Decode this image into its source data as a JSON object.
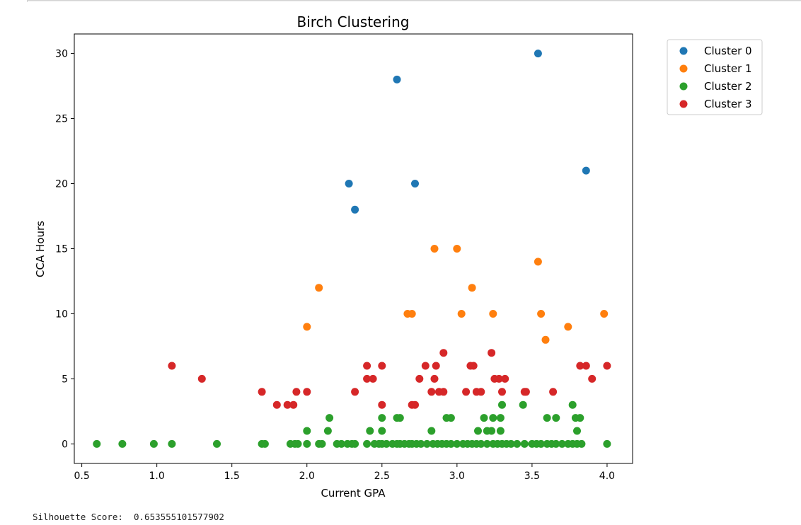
{
  "output": {
    "silhouette_label": "Silhouette Score:",
    "silhouette_value": "0.653555101577902"
  },
  "chart_data": {
    "type": "scatter",
    "title": "Birch Clustering",
    "xlabel": "Current GPA",
    "ylabel": "CCA Hours",
    "xlim": [
      0.45,
      4.17
    ],
    "ylim": [
      -1.5,
      31.5
    ],
    "xticks": [
      "0.5",
      "1.0",
      "1.5",
      "2.0",
      "2.5",
      "3.0",
      "3.5",
      "4.0"
    ],
    "yticks": [
      "0",
      "5",
      "10",
      "15",
      "20",
      "25",
      "30"
    ],
    "grid": false,
    "legend_position": "outside-top-right",
    "series": [
      {
        "name": "Cluster 0",
        "color": "#1f77b4",
        "points": [
          [
            2.28,
            20
          ],
          [
            2.32,
            18
          ],
          [
            2.6,
            28
          ],
          [
            2.72,
            20
          ],
          [
            3.54,
            30
          ],
          [
            3.86,
            21
          ]
        ]
      },
      {
        "name": "Cluster 1",
        "color": "#ff7f0e",
        "points": [
          [
            2.0,
            9
          ],
          [
            2.08,
            12
          ],
          [
            2.67,
            10
          ],
          [
            2.7,
            10
          ],
          [
            2.85,
            15
          ],
          [
            3.0,
            15
          ],
          [
            3.03,
            10
          ],
          [
            3.1,
            12
          ],
          [
            3.24,
            10
          ],
          [
            3.54,
            14
          ],
          [
            3.56,
            10
          ],
          [
            3.59,
            8
          ],
          [
            3.74,
            9
          ],
          [
            3.98,
            10
          ]
        ]
      },
      {
        "name": "Cluster 2",
        "color": "#2ca02c",
        "points": [
          [
            0.6,
            0
          ],
          [
            0.77,
            0
          ],
          [
            0.98,
            0
          ],
          [
            1.1,
            0
          ],
          [
            1.4,
            0
          ],
          [
            1.7,
            0
          ],
          [
            1.72,
            0
          ],
          [
            1.89,
            0
          ],
          [
            1.92,
            0
          ],
          [
            1.94,
            0
          ],
          [
            2.0,
            0
          ],
          [
            2.08,
            0
          ],
          [
            2.1,
            0
          ],
          [
            2.2,
            0
          ],
          [
            2.23,
            0
          ],
          [
            2.27,
            0
          ],
          [
            2.3,
            0
          ],
          [
            2.32,
            0
          ],
          [
            2.4,
            0
          ],
          [
            2.45,
            0
          ],
          [
            2.48,
            0
          ],
          [
            2.5,
            0
          ],
          [
            2.53,
            0
          ],
          [
            2.57,
            0
          ],
          [
            2.6,
            0
          ],
          [
            2.62,
            0
          ],
          [
            2.65,
            0
          ],
          [
            2.68,
            0
          ],
          [
            2.7,
            0
          ],
          [
            2.73,
            0
          ],
          [
            2.76,
            0
          ],
          [
            2.8,
            0
          ],
          [
            2.84,
            0
          ],
          [
            2.87,
            0
          ],
          [
            2.9,
            0
          ],
          [
            2.93,
            0
          ],
          [
            2.96,
            0
          ],
          [
            3.0,
            0
          ],
          [
            3.04,
            0
          ],
          [
            3.07,
            0
          ],
          [
            3.1,
            0
          ],
          [
            3.13,
            0
          ],
          [
            3.16,
            0
          ],
          [
            3.2,
            0
          ],
          [
            3.24,
            0
          ],
          [
            3.27,
            0
          ],
          [
            3.3,
            0
          ],
          [
            3.33,
            0
          ],
          [
            3.36,
            0
          ],
          [
            3.4,
            0
          ],
          [
            3.45,
            0
          ],
          [
            3.5,
            0
          ],
          [
            3.53,
            0
          ],
          [
            3.56,
            0
          ],
          [
            3.6,
            0
          ],
          [
            3.63,
            0
          ],
          [
            3.66,
            0
          ],
          [
            3.7,
            0
          ],
          [
            3.74,
            0
          ],
          [
            3.77,
            0
          ],
          [
            3.8,
            0
          ],
          [
            3.83,
            0
          ],
          [
            4.0,
            0
          ],
          [
            2.0,
            1
          ],
          [
            2.14,
            1
          ],
          [
            2.42,
            1
          ],
          [
            2.5,
            1
          ],
          [
            2.83,
            1
          ],
          [
            3.14,
            1
          ],
          [
            3.2,
            1
          ],
          [
            3.23,
            1
          ],
          [
            3.29,
            1
          ],
          [
            3.8,
            1
          ],
          [
            2.15,
            2
          ],
          [
            2.5,
            2
          ],
          [
            2.6,
            2
          ],
          [
            2.62,
            2
          ],
          [
            2.93,
            2
          ],
          [
            2.96,
            2
          ],
          [
            3.18,
            2
          ],
          [
            3.24,
            2
          ],
          [
            3.29,
            2
          ],
          [
            3.6,
            2
          ],
          [
            3.66,
            2
          ],
          [
            3.79,
            2
          ],
          [
            3.82,
            2
          ],
          [
            3.3,
            3
          ],
          [
            3.44,
            3
          ],
          [
            3.77,
            3
          ]
        ]
      },
      {
        "name": "Cluster 3",
        "color": "#d62728",
        "points": [
          [
            1.1,
            6
          ],
          [
            1.3,
            5
          ],
          [
            1.7,
            4
          ],
          [
            1.8,
            3
          ],
          [
            1.87,
            3
          ],
          [
            1.91,
            3
          ],
          [
            1.93,
            4
          ],
          [
            2.0,
            4
          ],
          [
            2.32,
            4
          ],
          [
            2.4,
            5
          ],
          [
            2.4,
            6
          ],
          [
            2.44,
            5
          ],
          [
            2.5,
            3
          ],
          [
            2.5,
            6
          ],
          [
            2.7,
            3
          ],
          [
            2.72,
            3
          ],
          [
            2.75,
            5
          ],
          [
            2.79,
            6
          ],
          [
            2.83,
            4
          ],
          [
            2.85,
            5
          ],
          [
            2.86,
            6
          ],
          [
            2.88,
            4
          ],
          [
            2.91,
            4
          ],
          [
            2.91,
            7
          ],
          [
            3.06,
            4
          ],
          [
            3.09,
            6
          ],
          [
            3.11,
            6
          ],
          [
            3.13,
            4
          ],
          [
            3.16,
            4
          ],
          [
            3.23,
            7
          ],
          [
            3.25,
            5
          ],
          [
            3.28,
            5
          ],
          [
            3.3,
            4
          ],
          [
            3.32,
            5
          ],
          [
            3.45,
            4
          ],
          [
            3.46,
            4
          ],
          [
            3.64,
            4
          ],
          [
            3.82,
            6
          ],
          [
            3.86,
            6
          ],
          [
            3.9,
            5
          ],
          [
            4.0,
            6
          ]
        ]
      }
    ]
  }
}
